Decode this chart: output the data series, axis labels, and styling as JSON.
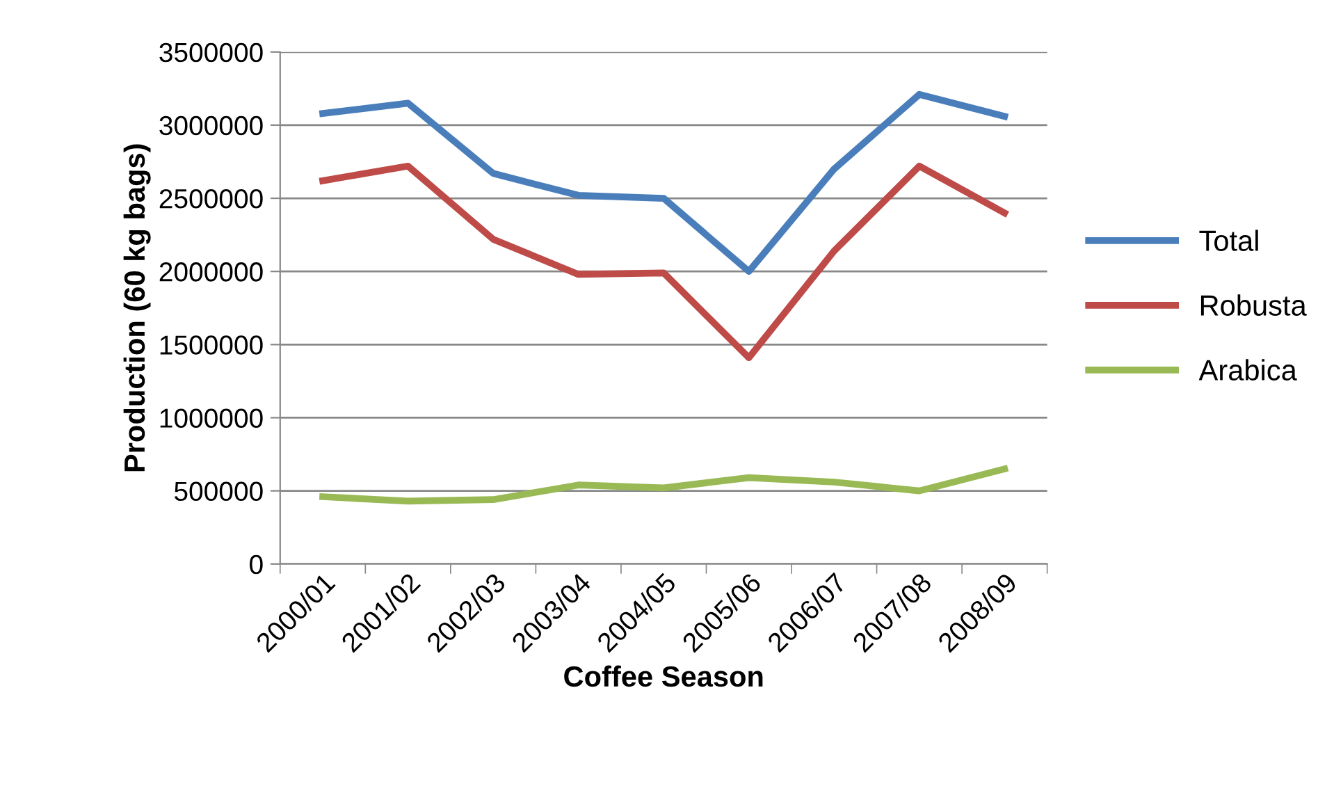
{
  "chart_data": {
    "type": "line",
    "xlabel": "Coffee Season",
    "ylabel": "Production (60 kg bags)",
    "categories": [
      "2000/01",
      "2001/02",
      "2002/03",
      "2003/04",
      "2004/05",
      "2005/06",
      "2006/07",
      "2007/08",
      "2008/09"
    ],
    "series": [
      {
        "name": "Total",
        "color": "#4a7ebb",
        "values": [
          3080000,
          3150000,
          2670000,
          2520000,
          2500000,
          2000000,
          2700000,
          3210000,
          3060000
        ]
      },
      {
        "name": "Robusta",
        "color": "#be4b48",
        "values": [
          2620000,
          2720000,
          2220000,
          1980000,
          1990000,
          1410000,
          2140000,
          2720000,
          2400000
        ]
      },
      {
        "name": "Arabica",
        "color": "#98b954",
        "values": [
          460000,
          430000,
          440000,
          540000,
          520000,
          590000,
          560000,
          500000,
          650000
        ]
      }
    ],
    "ylim": [
      0,
      3500000
    ],
    "yticks": [
      0,
      500000,
      1000000,
      1500000,
      2000000,
      2500000,
      3000000,
      3500000
    ],
    "grid": "y",
    "legend": "right",
    "marker": "none",
    "line_style": "solid"
  }
}
